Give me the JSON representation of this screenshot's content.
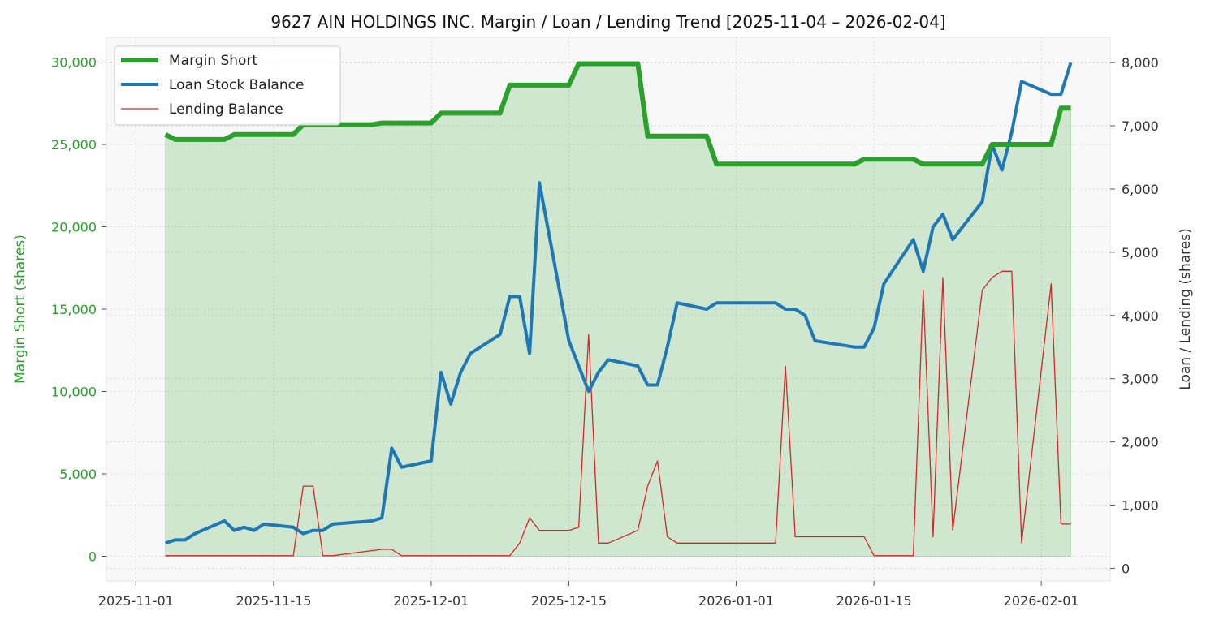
{
  "colors": {
    "margin": "#2ca02c",
    "loan": "#1f77b4",
    "lending": "#d62728",
    "fill": "#2ca02c",
    "plot_bg": "#f8f8f8",
    "grid": "#d0d0d0",
    "text": "#222222",
    "axis_text": "#333333"
  },
  "chart_data": {
    "type": "line",
    "title": "9627 AIN HOLDINGS INC. Margin / Loan / Lending Trend [2025-11-04 – 2026-02-04]",
    "ylabel_left": "Margin Short (shares)",
    "ylabel_right": "Loan / Lending (shares)",
    "xlim": [
      "2025-10-29",
      "2026-02-08"
    ],
    "ylim_left": [
      -1500,
      31500
    ],
    "ylim_right": [
      -200,
      8400
    ],
    "x_ticks": [
      "2025-11-01",
      "2025-11-15",
      "2025-12-01",
      "2025-12-15",
      "2026-01-01",
      "2026-01-15",
      "2026-02-01"
    ],
    "y_ticks_left": [
      0,
      5000,
      10000,
      15000,
      20000,
      25000,
      30000
    ],
    "y_ticks_left_labels": [
      "0",
      "5,000",
      "10,000",
      "15,000",
      "20,000",
      "25,000",
      "30,000"
    ],
    "y_ticks_right": [
      0,
      1000,
      2000,
      3000,
      4000,
      5000,
      6000,
      7000,
      8000
    ],
    "y_ticks_right_labels": [
      "0",
      "1,000",
      "2,000",
      "3,000",
      "4,000",
      "5,000",
      "6,000",
      "7,000",
      "8,000"
    ],
    "grid": true,
    "legend_position": "upper-left",
    "series": [
      {
        "name": "Margin Short",
        "axis": "left",
        "fill": true,
        "points": [
          [
            "2025-11-04",
            25600
          ],
          [
            "2025-11-05",
            25300
          ],
          [
            "2025-11-06",
            25300
          ],
          [
            "2025-11-07",
            25300
          ],
          [
            "2025-11-10",
            25300
          ],
          [
            "2025-11-11",
            25600
          ],
          [
            "2025-11-12",
            25600
          ],
          [
            "2025-11-13",
            25600
          ],
          [
            "2025-11-14",
            25600
          ],
          [
            "2025-11-17",
            25600
          ],
          [
            "2025-11-18",
            26200
          ],
          [
            "2025-11-19",
            26200
          ],
          [
            "2025-11-20",
            26200
          ],
          [
            "2025-11-21",
            26200
          ],
          [
            "2025-11-25",
            26200
          ],
          [
            "2025-11-26",
            26300
          ],
          [
            "2025-11-27",
            26300
          ],
          [
            "2025-11-28",
            26300
          ],
          [
            "2025-12-01",
            26300
          ],
          [
            "2025-12-02",
            26900
          ],
          [
            "2025-12-03",
            26900
          ],
          [
            "2025-12-04",
            26900
          ],
          [
            "2025-12-05",
            26900
          ],
          [
            "2025-12-08",
            26900
          ],
          [
            "2025-12-09",
            28600
          ],
          [
            "2025-12-10",
            28600
          ],
          [
            "2025-12-11",
            28600
          ],
          [
            "2025-12-12",
            28600
          ],
          [
            "2025-12-15",
            28600
          ],
          [
            "2025-12-16",
            29900
          ],
          [
            "2025-12-17",
            29900
          ],
          [
            "2025-12-18",
            29900
          ],
          [
            "2025-12-19",
            29900
          ],
          [
            "2025-12-22",
            29900
          ],
          [
            "2025-12-23",
            25500
          ],
          [
            "2025-12-24",
            25500
          ],
          [
            "2025-12-25",
            25500
          ],
          [
            "2025-12-26",
            25500
          ],
          [
            "2025-12-29",
            25500
          ],
          [
            "2025-12-30",
            23800
          ],
          [
            "2026-01-05",
            23800
          ],
          [
            "2026-01-06",
            23800
          ],
          [
            "2026-01-07",
            23800
          ],
          [
            "2026-01-08",
            23800
          ],
          [
            "2026-01-09",
            23800
          ],
          [
            "2026-01-13",
            23800
          ],
          [
            "2026-01-14",
            24100
          ],
          [
            "2026-01-15",
            24100
          ],
          [
            "2026-01-16",
            24100
          ],
          [
            "2026-01-19",
            24100
          ],
          [
            "2026-01-20",
            23800
          ],
          [
            "2026-01-21",
            23800
          ],
          [
            "2026-01-22",
            23800
          ],
          [
            "2026-01-23",
            23800
          ],
          [
            "2026-01-26",
            23800
          ],
          [
            "2026-01-27",
            25000
          ],
          [
            "2026-01-28",
            25000
          ],
          [
            "2026-01-29",
            25000
          ],
          [
            "2026-01-30",
            25000
          ],
          [
            "2026-02-02",
            25000
          ],
          [
            "2026-02-03",
            27200
          ],
          [
            "2026-02-04",
            27200
          ]
        ]
      },
      {
        "name": "Loan Stock Balance",
        "axis": "right",
        "points": [
          [
            "2025-11-04",
            400
          ],
          [
            "2025-11-05",
            450
          ],
          [
            "2025-11-06",
            450
          ],
          [
            "2025-11-07",
            550
          ],
          [
            "2025-11-10",
            750
          ],
          [
            "2025-11-11",
            600
          ],
          [
            "2025-11-12",
            650
          ],
          [
            "2025-11-13",
            600
          ],
          [
            "2025-11-14",
            700
          ],
          [
            "2025-11-17",
            650
          ],
          [
            "2025-11-18",
            550
          ],
          [
            "2025-11-19",
            600
          ],
          [
            "2025-11-20",
            600
          ],
          [
            "2025-11-21",
            700
          ],
          [
            "2025-11-25",
            750
          ],
          [
            "2025-11-26",
            800
          ],
          [
            "2025-11-27",
            1900
          ],
          [
            "2025-11-28",
            1600
          ],
          [
            "2025-12-01",
            1700
          ],
          [
            "2025-12-02",
            3100
          ],
          [
            "2025-12-03",
            2600
          ],
          [
            "2025-12-04",
            3100
          ],
          [
            "2025-12-05",
            3400
          ],
          [
            "2025-12-08",
            3700
          ],
          [
            "2025-12-09",
            4300
          ],
          [
            "2025-12-10",
            4300
          ],
          [
            "2025-12-11",
            3400
          ],
          [
            "2025-12-12",
            6100
          ],
          [
            "2025-12-15",
            3600
          ],
          [
            "2025-12-17",
            2800
          ],
          [
            "2025-12-18",
            3100
          ],
          [
            "2025-12-19",
            3300
          ],
          [
            "2025-12-22",
            3200
          ],
          [
            "2025-12-23",
            2900
          ],
          [
            "2025-12-24",
            2900
          ],
          [
            "2025-12-25",
            3500
          ],
          [
            "2025-12-26",
            4200
          ],
          [
            "2025-12-29",
            4100
          ],
          [
            "2025-12-30",
            4200
          ],
          [
            "2026-01-05",
            4200
          ],
          [
            "2026-01-06",
            4100
          ],
          [
            "2026-01-07",
            4100
          ],
          [
            "2026-01-08",
            4000
          ],
          [
            "2026-01-09",
            3600
          ],
          [
            "2026-01-13",
            3500
          ],
          [
            "2026-01-14",
            3500
          ],
          [
            "2026-01-15",
            3800
          ],
          [
            "2026-01-16",
            4500
          ],
          [
            "2026-01-19",
            5200
          ],
          [
            "2026-01-20",
            4700
          ],
          [
            "2026-01-21",
            5400
          ],
          [
            "2026-01-22",
            5600
          ],
          [
            "2026-01-23",
            5200
          ],
          [
            "2026-01-26",
            5800
          ],
          [
            "2026-01-27",
            6700
          ],
          [
            "2026-01-28",
            6300
          ],
          [
            "2026-01-29",
            6900
          ],
          [
            "2026-01-30",
            7700
          ],
          [
            "2026-02-02",
            7500
          ],
          [
            "2026-02-03",
            7500
          ],
          [
            "2026-02-04",
            8000
          ]
        ]
      },
      {
        "name": "Lending Balance",
        "axis": "right",
        "points": [
          [
            "2025-11-04",
            200
          ],
          [
            "2025-11-17",
            200
          ],
          [
            "2025-11-18",
            1300
          ],
          [
            "2025-11-19",
            1300
          ],
          [
            "2025-11-20",
            200
          ],
          [
            "2025-11-21",
            200
          ],
          [
            "2025-11-26",
            300
          ],
          [
            "2025-11-27",
            300
          ],
          [
            "2025-11-28",
            200
          ],
          [
            "2025-12-08",
            200
          ],
          [
            "2025-12-09",
            200
          ],
          [
            "2025-12-10",
            400
          ],
          [
            "2025-12-11",
            800
          ],
          [
            "2025-12-12",
            600
          ],
          [
            "2025-12-15",
            600
          ],
          [
            "2025-12-16",
            650
          ],
          [
            "2025-12-17",
            3700
          ],
          [
            "2025-12-18",
            400
          ],
          [
            "2025-12-19",
            400
          ],
          [
            "2025-12-22",
            600
          ],
          [
            "2025-12-23",
            1300
          ],
          [
            "2025-12-24",
            1700
          ],
          [
            "2025-12-25",
            500
          ],
          [
            "2025-12-26",
            400
          ],
          [
            "2026-01-05",
            400
          ],
          [
            "2026-01-06",
            3200
          ],
          [
            "2026-01-07",
            500
          ],
          [
            "2026-01-14",
            500
          ],
          [
            "2026-01-15",
            200
          ],
          [
            "2026-01-16",
            200
          ],
          [
            "2026-01-19",
            200
          ],
          [
            "2026-01-20",
            4400
          ],
          [
            "2026-01-21",
            500
          ],
          [
            "2026-01-22",
            4600
          ],
          [
            "2026-01-23",
            600
          ],
          [
            "2026-01-26",
            4400
          ],
          [
            "2026-01-27",
            4600
          ],
          [
            "2026-01-28",
            4700
          ],
          [
            "2026-01-29",
            4700
          ],
          [
            "2026-01-30",
            400
          ],
          [
            "2026-02-02",
            4500
          ],
          [
            "2026-02-03",
            700
          ],
          [
            "2026-02-04",
            700
          ]
        ]
      }
    ]
  }
}
